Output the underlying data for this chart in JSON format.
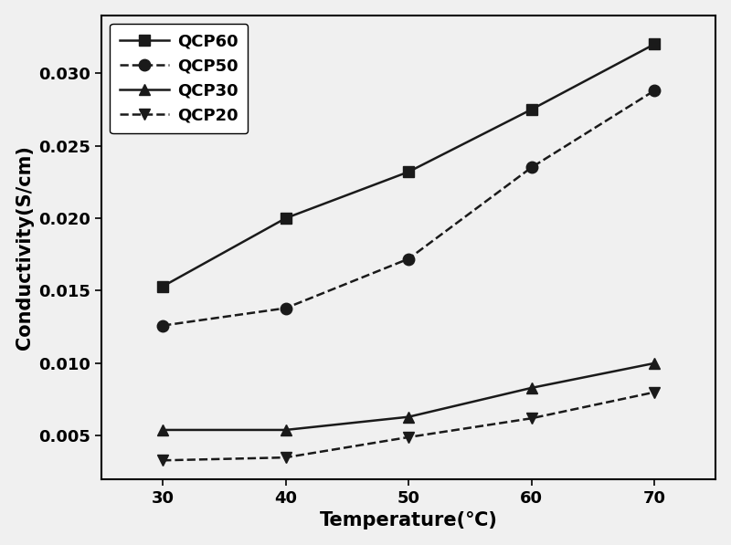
{
  "temperature": [
    30,
    40,
    50,
    60,
    70
  ],
  "series": {
    "QCP60": [
      0.0153,
      0.02,
      0.0232,
      0.0275,
      0.032
    ],
    "QCP50": [
      0.0126,
      0.0138,
      0.0172,
      0.0235,
      0.0288
    ],
    "QCP30": [
      0.0054,
      0.0054,
      0.0063,
      0.0083,
      0.01
    ],
    "QCP20": [
      0.0033,
      0.0035,
      0.0049,
      0.0062,
      0.008
    ]
  },
  "markers": {
    "QCP60": "s",
    "QCP50": "o",
    "QCP30": "^",
    "QCP20": "v"
  },
  "linestyles": {
    "QCP60": "-",
    "QCP50": "--",
    "QCP30": "-",
    "QCP20": "--"
  },
  "line_color": "#1a1a1a",
  "xlabel": "Temperature(℃)",
  "ylabel": "Conductivity(S/cm)",
  "xlim": [
    25,
    75
  ],
  "ylim": [
    0.002,
    0.034
  ],
  "yticks": [
    0.005,
    0.01,
    0.015,
    0.02,
    0.025,
    0.03
  ],
  "xticks": [
    30,
    40,
    50,
    60,
    70
  ],
  "legend_order": [
    "QCP60",
    "QCP50",
    "QCP30",
    "QCP20"
  ],
  "label_fontsize": 15,
  "tick_fontsize": 13,
  "legend_fontsize": 13,
  "markersize": 9,
  "linewidth": 1.8,
  "background_color": "#f0f0f0",
  "plot_bg_color": "#f0f0f0"
}
